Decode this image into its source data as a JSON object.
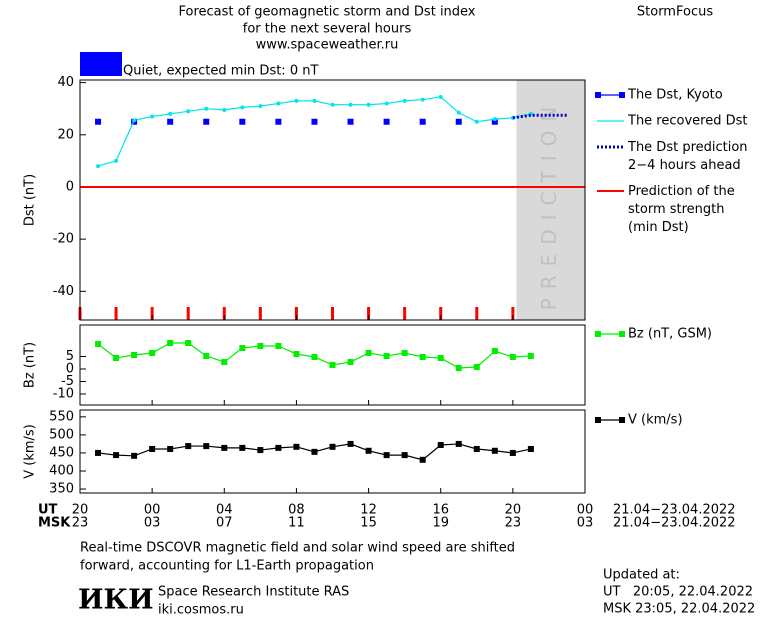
{
  "header": {
    "title_lines": [
      "Forecast of geomagnetic storm and Dst index",
      "for the next several hours",
      "www.spaceweather.ru"
    ],
    "brand": "StormFocus"
  },
  "status": {
    "label": "Quiet, expected min Dst: 0 nT",
    "color": "#0000ff"
  },
  "prediction_region": {
    "label": "PREDICTION",
    "xlim": [
      24.2,
      28
    ],
    "color": "#d9d9d9"
  },
  "time_axis": {
    "xlim": [
      0,
      28
    ],
    "ut_label": "UT",
    "msk_label": "MSK",
    "ut_ticks": [
      {
        "value": 0,
        "label": "20"
      },
      {
        "value": 4,
        "label": "00"
      },
      {
        "value": 8,
        "label": "04"
      },
      {
        "value": 12,
        "label": "08"
      },
      {
        "value": 16,
        "label": "12"
      },
      {
        "value": 20,
        "label": "16"
      },
      {
        "value": 24,
        "label": "20"
      },
      {
        "value": 28,
        "label": "00"
      }
    ],
    "msk_ticks": [
      {
        "value": 0,
        "label": "23"
      },
      {
        "value": 4,
        "label": "03"
      },
      {
        "value": 8,
        "label": "07"
      },
      {
        "value": 12,
        "label": "11"
      },
      {
        "value": 16,
        "label": "15"
      },
      {
        "value": 20,
        "label": "19"
      },
      {
        "value": 24,
        "label": "23"
      },
      {
        "value": 28,
        "label": "03"
      }
    ],
    "ut_range": "21.04−23.04.2022",
    "msk_range": "21.04−23.04.2022",
    "minor_ticks": [
      0,
      2,
      4,
      6,
      8,
      10,
      12,
      14,
      16,
      18,
      20,
      22,
      24
    ],
    "minor_color": "#ff0000"
  },
  "chart_data": [
    {
      "type": "line",
      "ylabel": "Dst (nT)",
      "xlim": [
        0,
        28
      ],
      "ylim": [
        -51,
        41
      ],
      "yticks": [
        -40,
        -20,
        0,
        20,
        40
      ],
      "series": [
        {
          "name": "The Dst, Kyoto",
          "color": "#0000ff",
          "marker": "square",
          "linestyle": "none",
          "x": [
            1,
            3,
            5,
            7,
            9,
            11,
            13,
            15,
            17,
            19,
            21,
            23
          ],
          "values": [
            25,
            25,
            25,
            25,
            25,
            25,
            25,
            25,
            25,
            25,
            25,
            25
          ]
        },
        {
          "name": "The recovered Dst",
          "color": "#00e5ee",
          "marker": "dot",
          "linestyle": "solid",
          "x": [
            1,
            2,
            3,
            4,
            5,
            6,
            7,
            8,
            9,
            10,
            11,
            12,
            13,
            14,
            15,
            16,
            17,
            18,
            19,
            20,
            21,
            22,
            23,
            24,
            25
          ],
          "values": [
            8,
            10,
            25.5,
            27,
            28,
            29,
            30,
            29.5,
            30.5,
            31,
            32,
            33,
            33,
            31.5,
            31.5,
            31.5,
            32,
            33,
            33.5,
            34.5,
            28.5,
            25,
            26,
            26.5,
            28
          ]
        },
        {
          "name": "The Dst prediction\n2−4 hours ahead",
          "color": "#0000cc",
          "marker": "none",
          "linestyle": "dotted",
          "x": [
            24,
            25,
            26,
            27
          ],
          "values": [
            26.5,
            27.5,
            27.5,
            27.5
          ]
        }
      ],
      "storm_prediction": {
        "name": "Prediction of the\nstorm strength\n(min Dst)",
        "color": "#ff0000",
        "value": 0
      }
    },
    {
      "type": "line",
      "ylabel": "Bz (nT)",
      "xlim": [
        0,
        28
      ],
      "ylim": [
        -14.4,
        17.6
      ],
      "yticks": [
        -10,
        -5,
        0,
        5
      ],
      "series": [
        {
          "name": "Bz (nT, GSM)",
          "color": "#00ee00",
          "marker": "square",
          "linestyle": "solid",
          "x": [
            1,
            2,
            3,
            4,
            5,
            6,
            7,
            8,
            9,
            10,
            11,
            12,
            13,
            14,
            15,
            16,
            17,
            18,
            19,
            20,
            21,
            22,
            23,
            24,
            25
          ],
          "values": [
            10,
            4.4,
            5.6,
            6.4,
            10.4,
            10.4,
            5.2,
            2.8,
            8.4,
            9.2,
            9.2,
            6,
            4.8,
            1.6,
            2.8,
            6.4,
            5.2,
            6.4,
            4.8,
            4.4,
            0.4,
            0.8,
            7.2,
            4.8,
            5.2
          ]
        }
      ]
    },
    {
      "type": "line",
      "ylabel": "V (km/s)",
      "xlim": [
        0,
        28
      ],
      "ylim": [
        339,
        569
      ],
      "yticks": [
        350,
        400,
        450,
        500,
        550
      ],
      "series": [
        {
          "name": "V (km/s)",
          "color": "#000000",
          "marker": "square",
          "linestyle": "solid",
          "x": [
            1,
            2,
            3,
            4,
            5,
            6,
            7,
            8,
            9,
            10,
            11,
            12,
            13,
            14,
            15,
            16,
            17,
            18,
            19,
            20,
            21,
            22,
            23,
            24,
            25
          ],
          "values": [
            450,
            444,
            442,
            461,
            461,
            469,
            469,
            464,
            464,
            458,
            464,
            467,
            453,
            467,
            475,
            456,
            444,
            444,
            431,
            472,
            475,
            461,
            456,
            450,
            461
          ]
        }
      ]
    }
  ],
  "footer": {
    "note_lines": [
      "Real-time DSCOVR magnetic field and solar wind speed are shifted",
      "forward, accounting for L1-Earth propagation"
    ],
    "logo": "ИКИ",
    "institute": "Space Research Institute RAS",
    "site": "iki.cosmos.ru",
    "updated_label": "Updated at:",
    "updated_ut": "UT   20:05, 22.04.2022",
    "updated_msk": "MSK 23:05, 22.04.2022"
  }
}
